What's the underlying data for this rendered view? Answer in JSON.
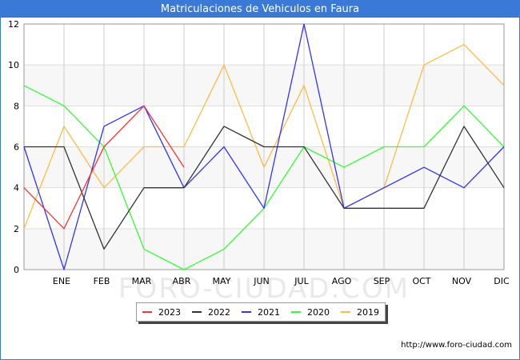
{
  "chart_data": {
    "type": "line",
    "title": "Matriculaciones de Vehiculos en Faura",
    "xlabel": "",
    "ylabel": "",
    "ylim": [
      0,
      12
    ],
    "yticks": [
      0,
      2,
      4,
      6,
      8,
      10,
      12
    ],
    "grid": true,
    "legend_position": "bottom-center",
    "categories": [
      "",
      "ENE",
      "FEB",
      "MAR",
      "ABR",
      "MAY",
      "JUN",
      "JUL",
      "AGO",
      "SEP",
      "OCT",
      "NOV",
      "DIC"
    ],
    "series": [
      {
        "name": "2023",
        "color": "#ff3333",
        "values": [
          4,
          2,
          6,
          8,
          5,
          null,
          null,
          null,
          null,
          null,
          null,
          null,
          null
        ]
      },
      {
        "name": "2022",
        "color": "#333333",
        "values": [
          6,
          6,
          1,
          4,
          4,
          7,
          6,
          6,
          3,
          3,
          3,
          7,
          4
        ]
      },
      {
        "name": "2021",
        "color": "#3333ff",
        "values": [
          6,
          0,
          7,
          8,
          4,
          6,
          3,
          12,
          3,
          4,
          5,
          4,
          6
        ]
      },
      {
        "name": "2020",
        "color": "#33ff33",
        "values": [
          9,
          8,
          6,
          1,
          0,
          1,
          3,
          6,
          5,
          6,
          6,
          8,
          6
        ]
      },
      {
        "name": "2019",
        "color": "#ffbb44",
        "values": [
          2,
          7,
          4,
          6,
          6,
          10,
          5,
          9,
          3,
          4,
          10,
          11,
          9
        ]
      }
    ]
  },
  "watermark": "FORO-CIUDAD.COM",
  "footer_url": "http://www.foro-ciudad.com"
}
